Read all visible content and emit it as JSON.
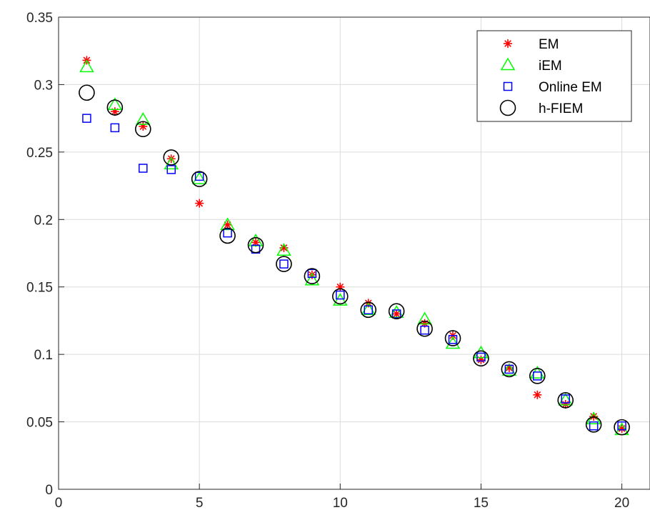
{
  "chart_data": {
    "type": "scatter",
    "title": "",
    "xlabel": "",
    "ylabel": "",
    "xlim": [
      0,
      21
    ],
    "ylim": [
      0,
      0.35
    ],
    "xticks": [
      0,
      5,
      10,
      15,
      20
    ],
    "yticks": [
      0,
      0.05,
      0.1,
      0.15,
      0.2,
      0.25,
      0.3,
      0.35
    ],
    "xtick_labels": [
      "0",
      "5",
      "10",
      "15",
      "20"
    ],
    "ytick_labels": [
      "0",
      "0.05",
      "0.1",
      "0.15",
      "0.2",
      "0.25",
      "0.3",
      "0.35"
    ],
    "grid": true,
    "legend_position": "top-right",
    "x": [
      1,
      2,
      3,
      4,
      5,
      6,
      7,
      8,
      9,
      10,
      11,
      12,
      13,
      14,
      15,
      16,
      17,
      18,
      19,
      20
    ],
    "series": [
      {
        "name": "EM",
        "marker": "asterisk",
        "color": "#ff0000",
        "values": [
          0.318,
          0.28,
          0.269,
          0.245,
          0.212,
          0.196,
          0.183,
          0.179,
          0.159,
          0.15,
          0.138,
          0.13,
          0.123,
          0.114,
          0.096,
          0.09,
          0.07,
          0.063,
          0.054,
          0.045
        ]
      },
      {
        "name": "iEM",
        "marker": "triangle",
        "color": "#00ff00",
        "values": [
          0.313,
          0.285,
          0.274,
          0.241,
          0.23,
          0.196,
          0.184,
          0.177,
          0.155,
          0.14,
          0.133,
          0.131,
          0.126,
          0.108,
          0.101,
          0.088,
          0.086,
          0.066,
          0.052,
          0.044
        ]
      },
      {
        "name": "Online EM",
        "marker": "square",
        "color": "#0000ff",
        "values": [
          0.275,
          0.268,
          0.238,
          0.237,
          0.232,
          0.19,
          0.178,
          0.167,
          0.16,
          0.144,
          0.133,
          0.13,
          0.118,
          0.111,
          0.098,
          0.089,
          0.084,
          0.067,
          0.047,
          0.047
        ]
      },
      {
        "name": "h-FIEM",
        "marker": "circle",
        "color": "#000000",
        "values": [
          0.294,
          0.283,
          0.267,
          0.246,
          0.23,
          0.188,
          0.181,
          0.167,
          0.158,
          0.143,
          0.133,
          0.132,
          0.119,
          0.112,
          0.097,
          0.089,
          0.084,
          0.066,
          0.048,
          0.046
        ]
      }
    ]
  }
}
